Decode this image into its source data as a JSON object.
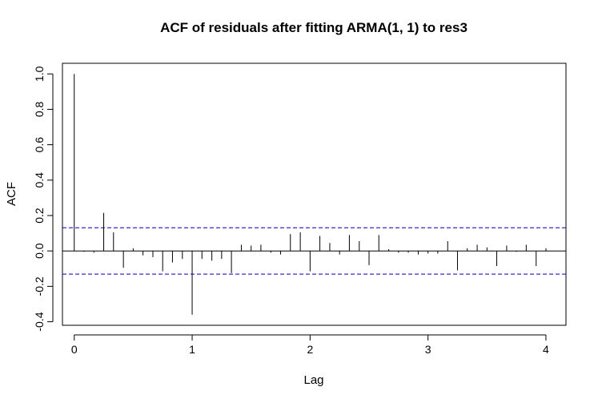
{
  "chart_data": {
    "type": "bar",
    "title": "ACF of residuals after fitting ARMA(1, 1) to res3",
    "xlabel": "Lag",
    "ylabel": "ACF",
    "xlim": [
      -0.1,
      4.17
    ],
    "ylim": [
      -0.42,
      1.06
    ],
    "x_ticks": [
      0,
      1,
      2,
      3,
      4
    ],
    "x_tick_labels": [
      "0",
      "1",
      "2",
      "3",
      "4"
    ],
    "y_ticks": [
      -0.4,
      -0.2,
      0.0,
      0.2,
      0.4,
      0.6,
      0.8,
      1.0
    ],
    "y_tick_labels": [
      "-0.4",
      "-0.2",
      "0.0",
      "0.2",
      "0.4",
      "0.6",
      "0.8",
      "1.0"
    ],
    "confidence_bounds": [
      0.131,
      -0.131
    ],
    "confidence_line_color": "#0000cc",
    "grid": false,
    "lag": [
      0.0,
      0.083,
      0.167,
      0.25,
      0.333,
      0.417,
      0.5,
      0.583,
      0.667,
      0.75,
      0.833,
      0.917,
      1.0,
      1.083,
      1.167,
      1.25,
      1.333,
      1.417,
      1.5,
      1.583,
      1.667,
      1.75,
      1.833,
      1.917,
      2.0,
      2.083,
      2.167,
      2.25,
      2.333,
      2.417,
      2.5,
      2.583,
      2.667,
      2.75,
      2.833,
      2.917,
      3.0,
      3.083,
      3.167,
      3.25,
      3.333,
      3.417,
      3.5,
      3.583,
      3.667,
      3.75,
      3.833,
      3.917,
      4.0
    ],
    "acf": [
      1.0,
      -0.005,
      -0.01,
      0.215,
      0.105,
      -0.095,
      0.015,
      -0.025,
      -0.035,
      -0.115,
      -0.065,
      -0.045,
      -0.36,
      -0.045,
      -0.055,
      -0.045,
      -0.125,
      0.035,
      0.03,
      0.035,
      -0.01,
      -0.02,
      0.095,
      0.105,
      -0.115,
      0.085,
      0.045,
      -0.02,
      0.09,
      0.055,
      -0.08,
      0.09,
      0.01,
      -0.01,
      -0.01,
      -0.02,
      -0.015,
      -0.015,
      0.055,
      -0.11,
      0.015,
      0.035,
      0.02,
      -0.085,
      0.03,
      -0.005,
      0.035,
      -0.085,
      0.015
    ]
  }
}
